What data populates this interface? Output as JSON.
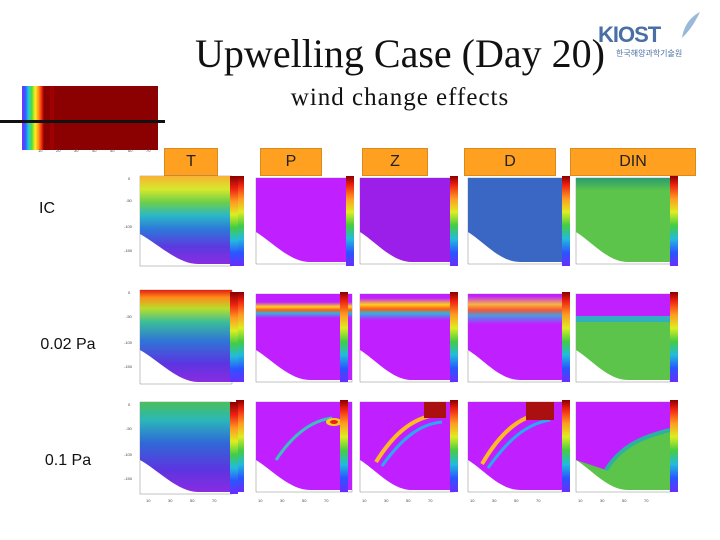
{
  "header": {
    "title": "Upwelling Case (Day 20)",
    "subtitle": "wind change effects",
    "logo": "KIOST",
    "logo_sub": "한국해양과학기술원"
  },
  "columns": [
    "T",
    "P",
    "Z",
    "D",
    "DIN"
  ],
  "rows": [
    "IC",
    "0.02 Pa",
    "0.1 Pa"
  ],
  "colors": {
    "header_bg": "#ffa020",
    "magenta": "#c020ff",
    "purple": "#9b1fe8",
    "blue_fill": "#3a66c4",
    "green_fill": "#5cc44a",
    "dark_red": "#8b0000"
  }
}
